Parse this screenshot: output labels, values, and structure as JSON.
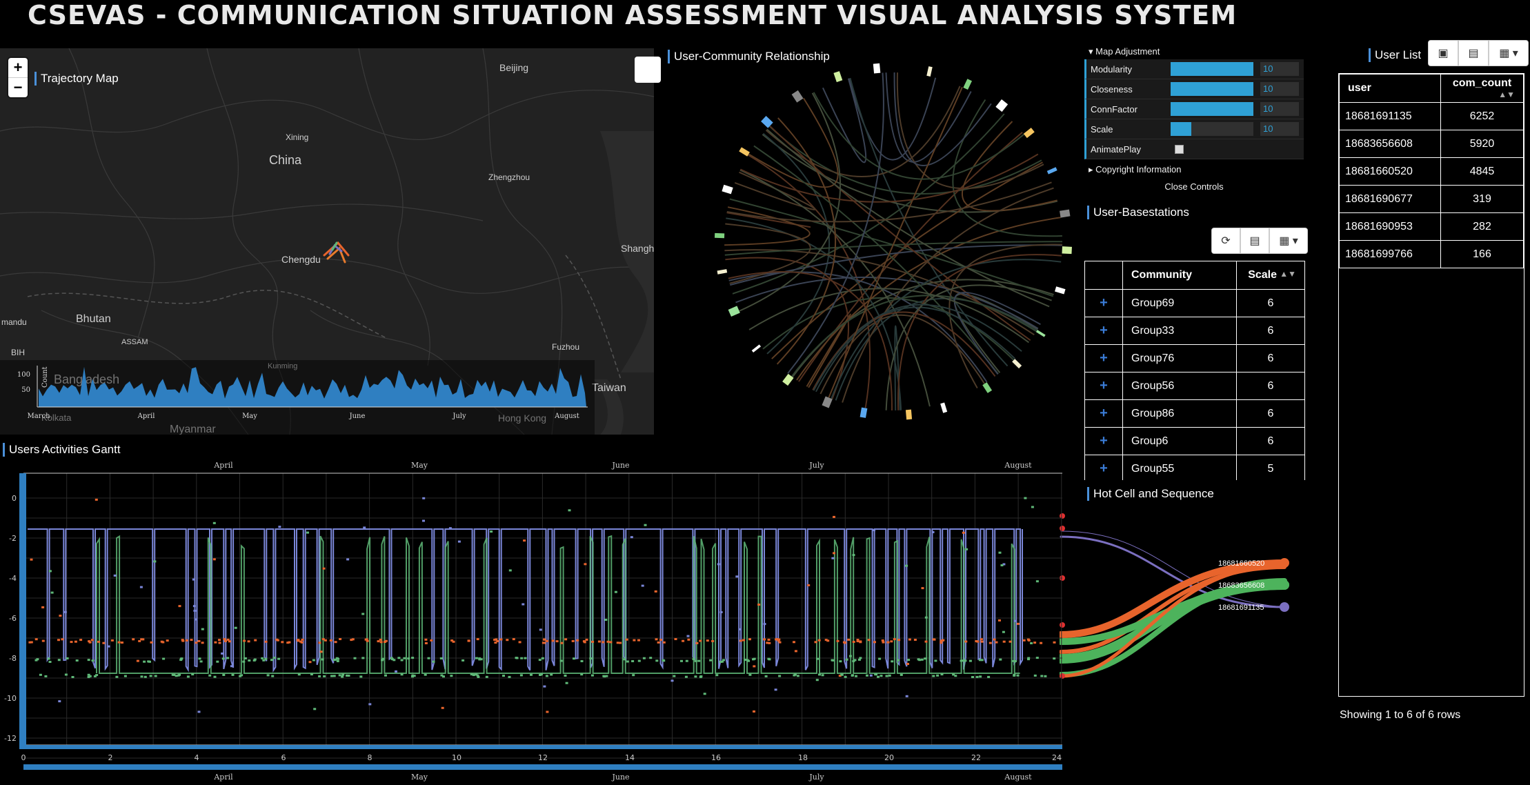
{
  "app": {
    "title": "CSEVAS - Communication Situation Assessment Visual Analysis System"
  },
  "trajectory_map": {
    "title": "Trajectory Map",
    "zoom_in": "+",
    "zoom_out": "−",
    "places": [
      "Beijing",
      "Xining",
      "China",
      "Zhengzhou",
      "Chengdu",
      "Shangh",
      "Bhutan",
      "Bangladesh",
      "Kunming",
      "Fuzhou",
      "Taiwan",
      "Hong Kong",
      "Myanmar",
      "Kolkata",
      "ASSAM",
      "mandu",
      "BIH"
    ],
    "count_chart": {
      "ylabel": "Count",
      "yticks": [
        "100",
        "50"
      ],
      "months": [
        "March",
        "April",
        "May",
        "June",
        "July",
        "August"
      ]
    }
  },
  "community_relationship": {
    "title": "User-Community Relationship"
  },
  "controls": {
    "folder": "Map Adjustment",
    "items": [
      {
        "label": "Modularity",
        "value": "10",
        "level": 1.0
      },
      {
        "label": "Closeness",
        "value": "10",
        "level": 1.0
      },
      {
        "label": "ConnFactor",
        "value": "10",
        "level": 1.0
      },
      {
        "label": "Scale",
        "value": "10",
        "level": 0.25
      }
    ],
    "animate_label": "AnimatePlay",
    "copyright": "Copyright Information",
    "close": "Close Controls"
  },
  "basestations": {
    "title": "User-Basestations",
    "columns": [
      "Community",
      "Scale"
    ],
    "rows": [
      {
        "community": "Group69",
        "scale": "6"
      },
      {
        "community": "Group33",
        "scale": "6"
      },
      {
        "community": "Group76",
        "scale": "6"
      },
      {
        "community": "Group56",
        "scale": "6"
      },
      {
        "community": "Group86",
        "scale": "6"
      },
      {
        "community": "Group6",
        "scale": "6"
      },
      {
        "community": "Group55",
        "scale": "5"
      }
    ]
  },
  "user_list": {
    "title": "User List",
    "columns": [
      "user",
      "com_count"
    ],
    "rows": [
      {
        "user": "18681691135",
        "count": "6252"
      },
      {
        "user": "18683656608",
        "count": "5920"
      },
      {
        "user": "18681660520",
        "count": "4845"
      },
      {
        "user": "18681690677",
        "count": "319"
      },
      {
        "user": "18681690953",
        "count": "282"
      },
      {
        "user": "18681699766",
        "count": "166"
      }
    ],
    "footer": "Showing 1 to 6 of 6 rows"
  },
  "hot_cell": {
    "title": "Hot Cell and Sequence",
    "users": [
      {
        "label": "18681660520",
        "color": "#e8642c"
      },
      {
        "label": "18683656608",
        "color": "#4db35c"
      },
      {
        "label": "18681691135",
        "color": "#7b6fc0"
      }
    ]
  },
  "gantt": {
    "title": "Users Activities Gantt",
    "months": [
      "April",
      "May",
      "June",
      "July",
      "August"
    ],
    "yticks": [
      "0",
      "-2",
      "-4",
      "-6",
      "-8",
      "-10",
      "-12"
    ],
    "xticks": [
      "0",
      "2",
      "4",
      "6",
      "8",
      "10",
      "12",
      "14",
      "16",
      "18",
      "20",
      "22",
      "24"
    ],
    "colors": {
      "purple": "#7a86d8",
      "green": "#5fb878",
      "orange": "#e8642c"
    }
  }
}
